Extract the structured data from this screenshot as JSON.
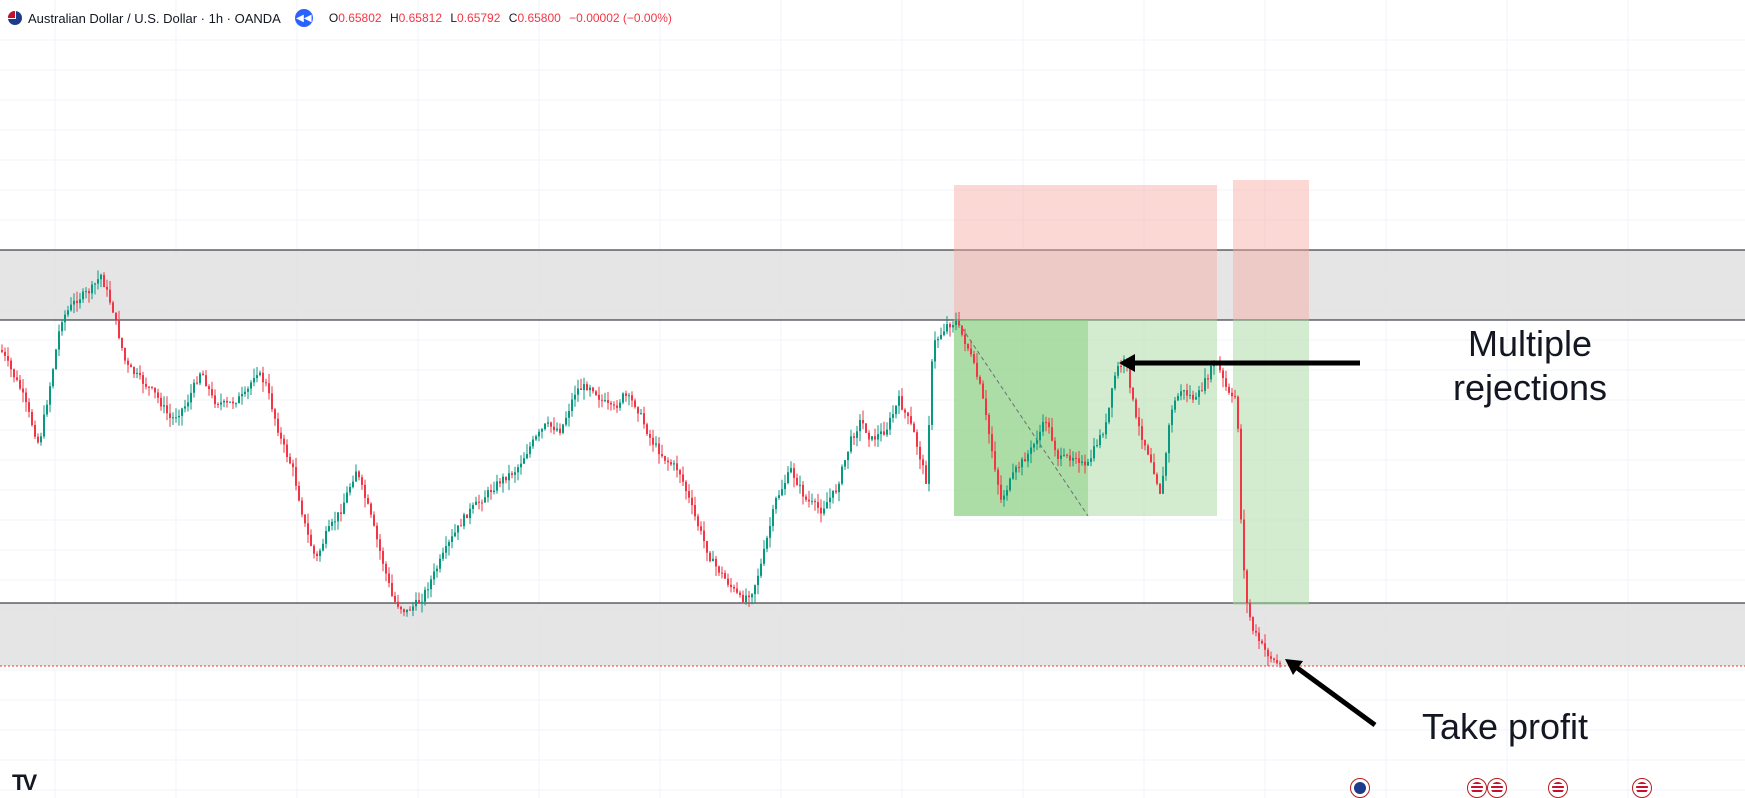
{
  "header": {
    "symbol_title": "Australian Dollar / U.S. Dollar · 1h · OANDA",
    "ohlc": {
      "open_label": "O",
      "open_value": "0.65802",
      "high_label": "H",
      "high_value": "0.65812",
      "low_label": "L",
      "low_value": "0.65792",
      "close_label": "C",
      "close_value": "0.65800",
      "change": "−0.00002 (−0.00%)"
    }
  },
  "annotations": {
    "multiple_rejections_line1": "Multiple",
    "multiple_rejections_line2": "rejections",
    "take_profit": "Take profit"
  },
  "colors": {
    "up_candle": "#089981",
    "down_candle": "#f23645",
    "zone_fill": "#e0e0e2",
    "stop_fill": "#fbd2cf",
    "target_fill": "#c9e8c5",
    "target_fill_active": "#a7d9a1",
    "accent": "#2962ff"
  },
  "icons": {
    "symbol_flag": "au-flag-icon",
    "replay": "replay-icon",
    "logo": "tradingview-logo",
    "events": [
      "au-event-icon",
      "us-event-icon",
      "us-event-icon",
      "us-event-icon",
      "us-event-icon"
    ]
  }
}
